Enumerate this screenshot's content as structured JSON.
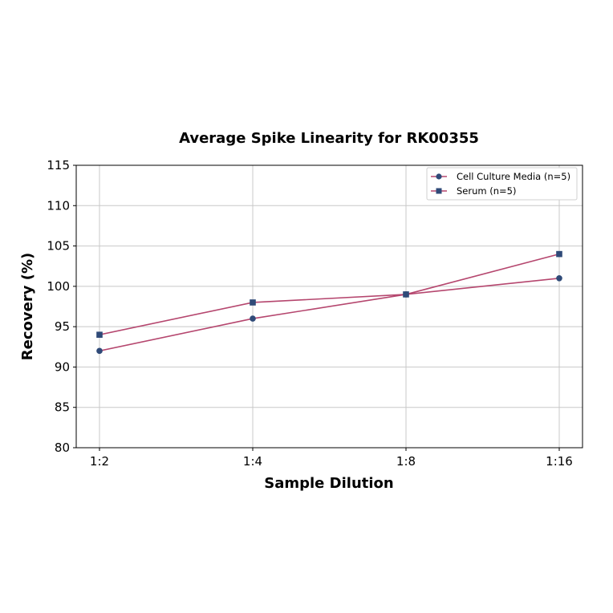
{
  "chart_data": {
    "type": "line",
    "title": "Average Spike Linearity for RK00355",
    "xlabel": "Sample Dilution",
    "ylabel": "Recovery (%)",
    "categories": [
      "1:2",
      "1:4",
      "1:8",
      "1:16"
    ],
    "ylim": [
      80,
      115
    ],
    "yticks": [
      80,
      85,
      90,
      95,
      100,
      105,
      110,
      115
    ],
    "grid": true,
    "legend_position": "upper right",
    "series": [
      {
        "name": "Cell Culture Media (n=5)",
        "marker": "circle",
        "values": [
          92,
          96,
          99,
          101
        ]
      },
      {
        "name": "Serum (n=5)",
        "marker": "square",
        "values": [
          94,
          98,
          99,
          104
        ]
      }
    ],
    "colors": {
      "line": "#b5466e",
      "marker": "#2f4a78",
      "grid": "#c8c8c8"
    }
  }
}
